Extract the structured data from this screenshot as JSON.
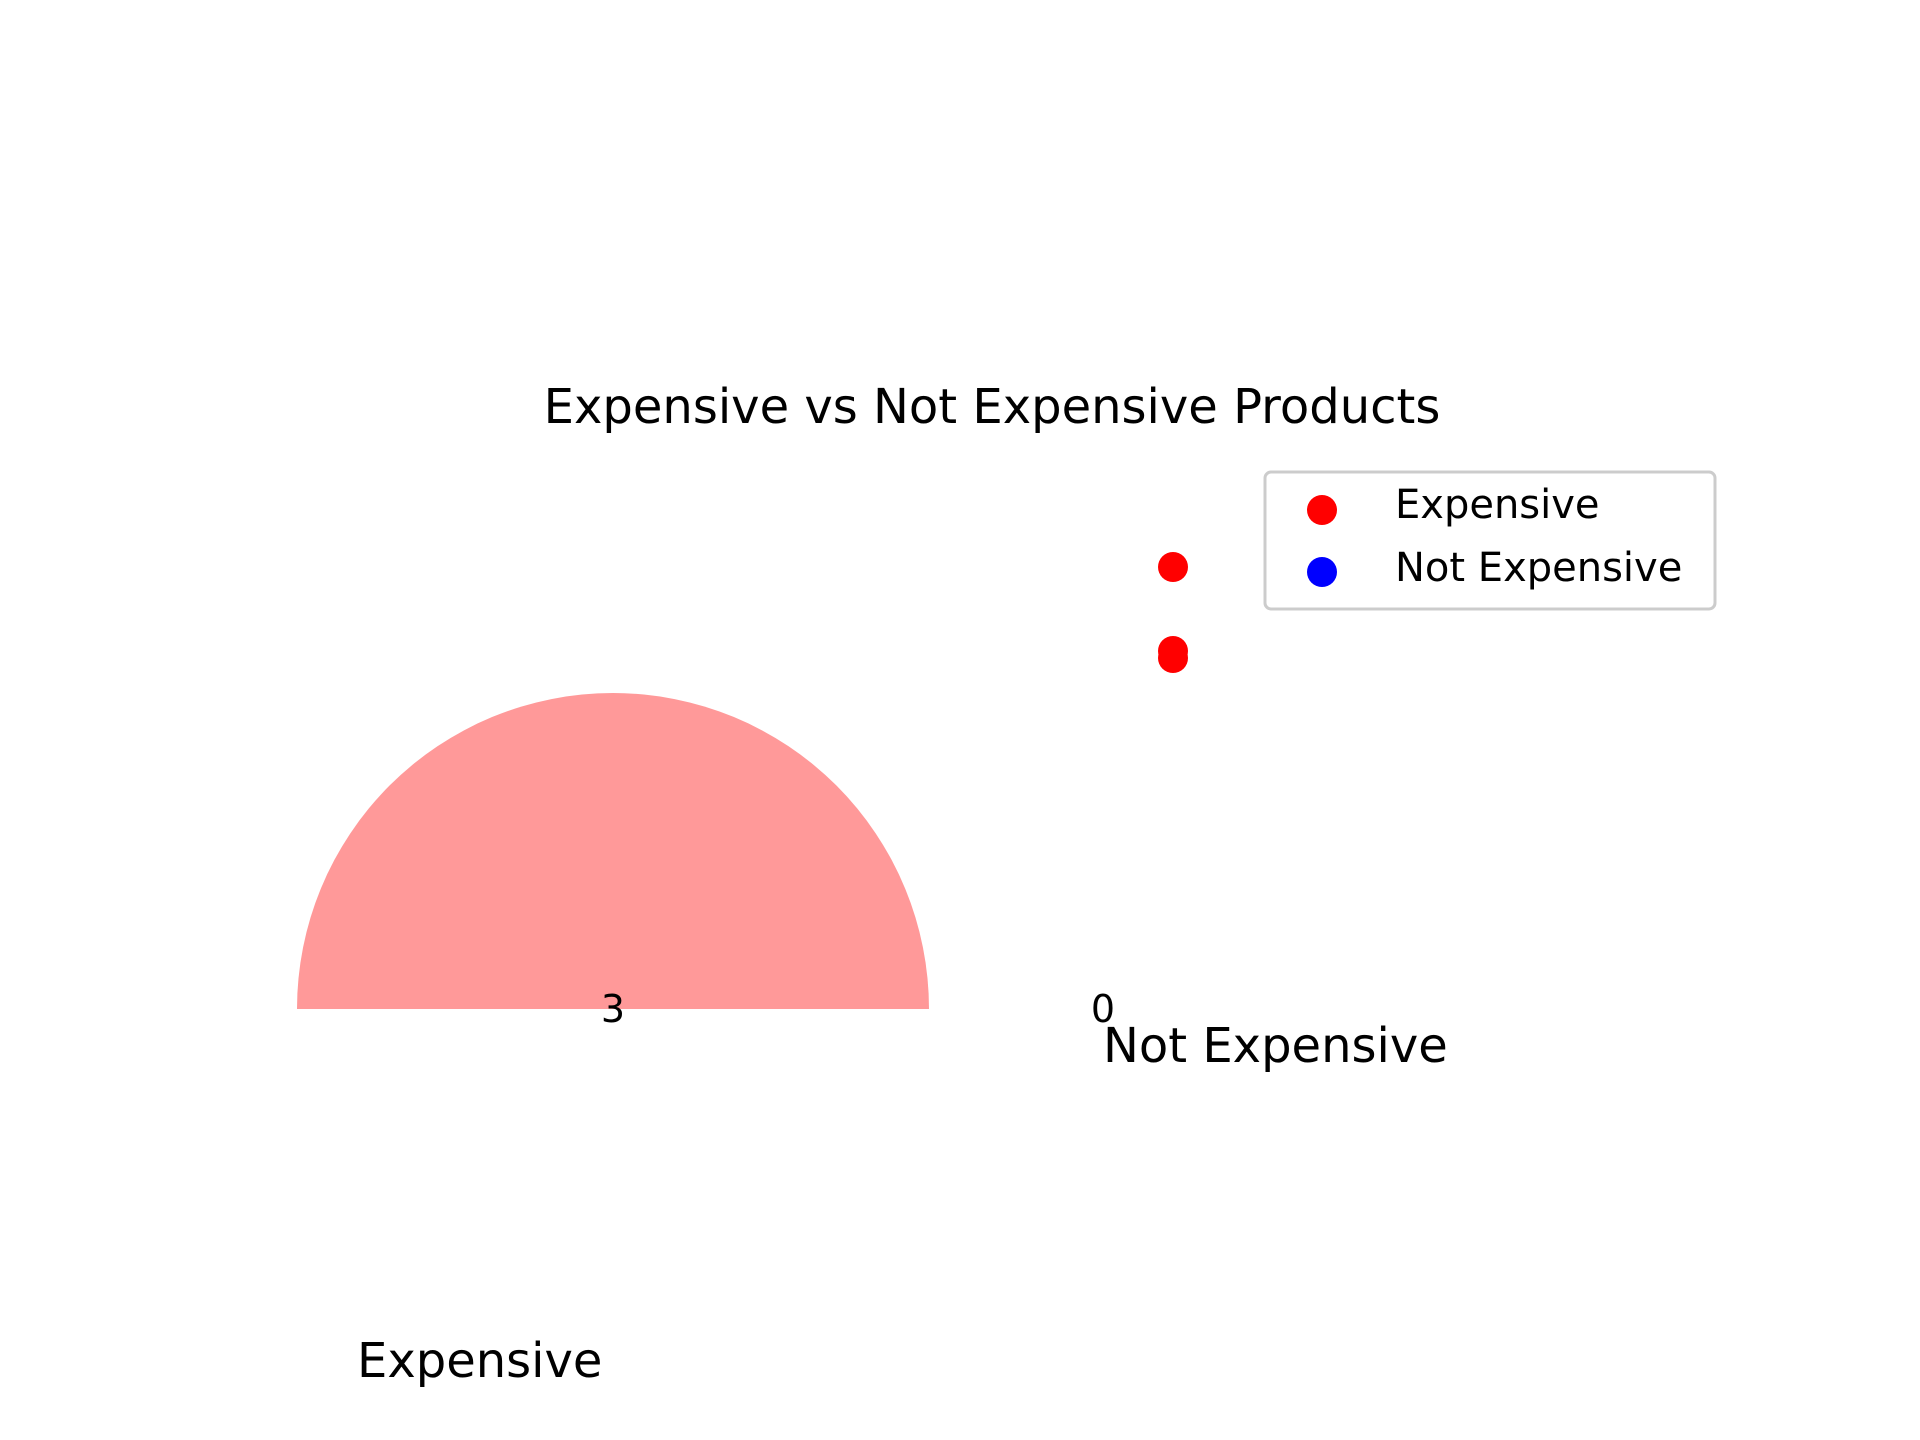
{
  "chart_data": [
    {
      "type": "pie",
      "title": "Expensive vs Not Expensive Products",
      "labels": [
        "Expensive",
        "Not Expensive"
      ],
      "values": [
        3,
        0
      ],
      "value_labels": [
        "3",
        "0"
      ],
      "colors": [
        "#ff9999",
        "#66b3ff"
      ],
      "start_angle_deg": 0,
      "visible_arc": "upper half"
    },
    {
      "type": "scatter",
      "series": [
        {
          "name": "Expensive",
          "color": "#ff0000",
          "points": [
            {
              "x": 0,
              "y": 1.0
            },
            {
              "x": 0,
              "y": 0.76
            },
            {
              "x": 0,
              "y": 0.74
            }
          ]
        },
        {
          "name": "Not Expensive",
          "color": "#0000ff",
          "points": []
        }
      ],
      "legend_position": "upper right"
    }
  ]
}
